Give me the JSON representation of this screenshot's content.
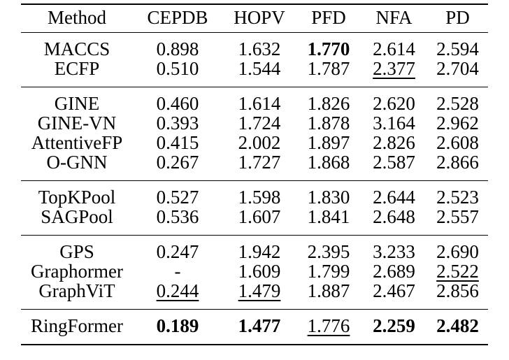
{
  "colors": {
    "background": "#ffffff",
    "text": "#000000",
    "rule": "#000000"
  },
  "table": {
    "columns": [
      "Method",
      "CEPDB",
      "HOPV",
      "PFD",
      "NFA",
      "PD"
    ],
    "groups": [
      {
        "rows": [
          {
            "method": "MACCS",
            "cells": [
              {
                "t": "0.898"
              },
              {
                "t": "1.632"
              },
              {
                "t": "1.770",
                "bold": true
              },
              {
                "t": "2.614"
              },
              {
                "t": "2.594"
              }
            ]
          },
          {
            "method": "ECFP",
            "cells": [
              {
                "t": "0.510"
              },
              {
                "t": "1.544"
              },
              {
                "t": "1.787"
              },
              {
                "t": "2.377",
                "underline": true
              },
              {
                "t": "2.704"
              }
            ]
          }
        ]
      },
      {
        "rows": [
          {
            "method": "GINE",
            "cells": [
              {
                "t": "0.460"
              },
              {
                "t": "1.614"
              },
              {
                "t": "1.826"
              },
              {
                "t": "2.620"
              },
              {
                "t": "2.528"
              }
            ]
          },
          {
            "method": "GINE-VN",
            "cells": [
              {
                "t": "0.393"
              },
              {
                "t": "1.724"
              },
              {
                "t": "1.878"
              },
              {
                "t": "3.164"
              },
              {
                "t": "2.962"
              }
            ]
          },
          {
            "method": "AttentiveFP",
            "cells": [
              {
                "t": "0.415"
              },
              {
                "t": "2.002"
              },
              {
                "t": "1.897"
              },
              {
                "t": "2.826"
              },
              {
                "t": "2.608"
              }
            ]
          },
          {
            "method": "O-GNN",
            "cells": [
              {
                "t": "0.267"
              },
              {
                "t": "1.727"
              },
              {
                "t": "1.868"
              },
              {
                "t": "2.587"
              },
              {
                "t": "2.866"
              }
            ]
          }
        ]
      },
      {
        "rows": [
          {
            "method": "TopKPool",
            "cells": [
              {
                "t": "0.527"
              },
              {
                "t": "1.598"
              },
              {
                "t": "1.830"
              },
              {
                "t": "2.644"
              },
              {
                "t": "2.523"
              }
            ]
          },
          {
            "method": "SAGPool",
            "cells": [
              {
                "t": "0.536"
              },
              {
                "t": "1.607"
              },
              {
                "t": "1.841"
              },
              {
                "t": "2.648"
              },
              {
                "t": "2.557"
              }
            ]
          }
        ]
      },
      {
        "rows": [
          {
            "method": "GPS",
            "cells": [
              {
                "t": "0.247"
              },
              {
                "t": "1.942"
              },
              {
                "t": "2.395"
              },
              {
                "t": "3.233"
              },
              {
                "t": "2.690"
              }
            ]
          },
          {
            "method": "Graphormer",
            "cells": [
              {
                "t": "-"
              },
              {
                "t": "1.609"
              },
              {
                "t": "1.799"
              },
              {
                "t": "2.689"
              },
              {
                "t": "2.522",
                "underline": true
              }
            ]
          },
          {
            "method": "GraphViT",
            "cells": [
              {
                "t": "0.244",
                "underline": true
              },
              {
                "t": "1.479",
                "underline": true
              },
              {
                "t": "1.887"
              },
              {
                "t": "2.467"
              },
              {
                "t": "2.856"
              }
            ]
          }
        ]
      },
      {
        "rows": [
          {
            "method": "RingFormer",
            "cells": [
              {
                "t": "0.189",
                "bold": true
              },
              {
                "t": "1.477",
                "bold": true
              },
              {
                "t": "1.776",
                "underline": true
              },
              {
                "t": "2.259",
                "bold": true
              },
              {
                "t": "2.482",
                "bold": true
              }
            ]
          }
        ]
      }
    ]
  }
}
